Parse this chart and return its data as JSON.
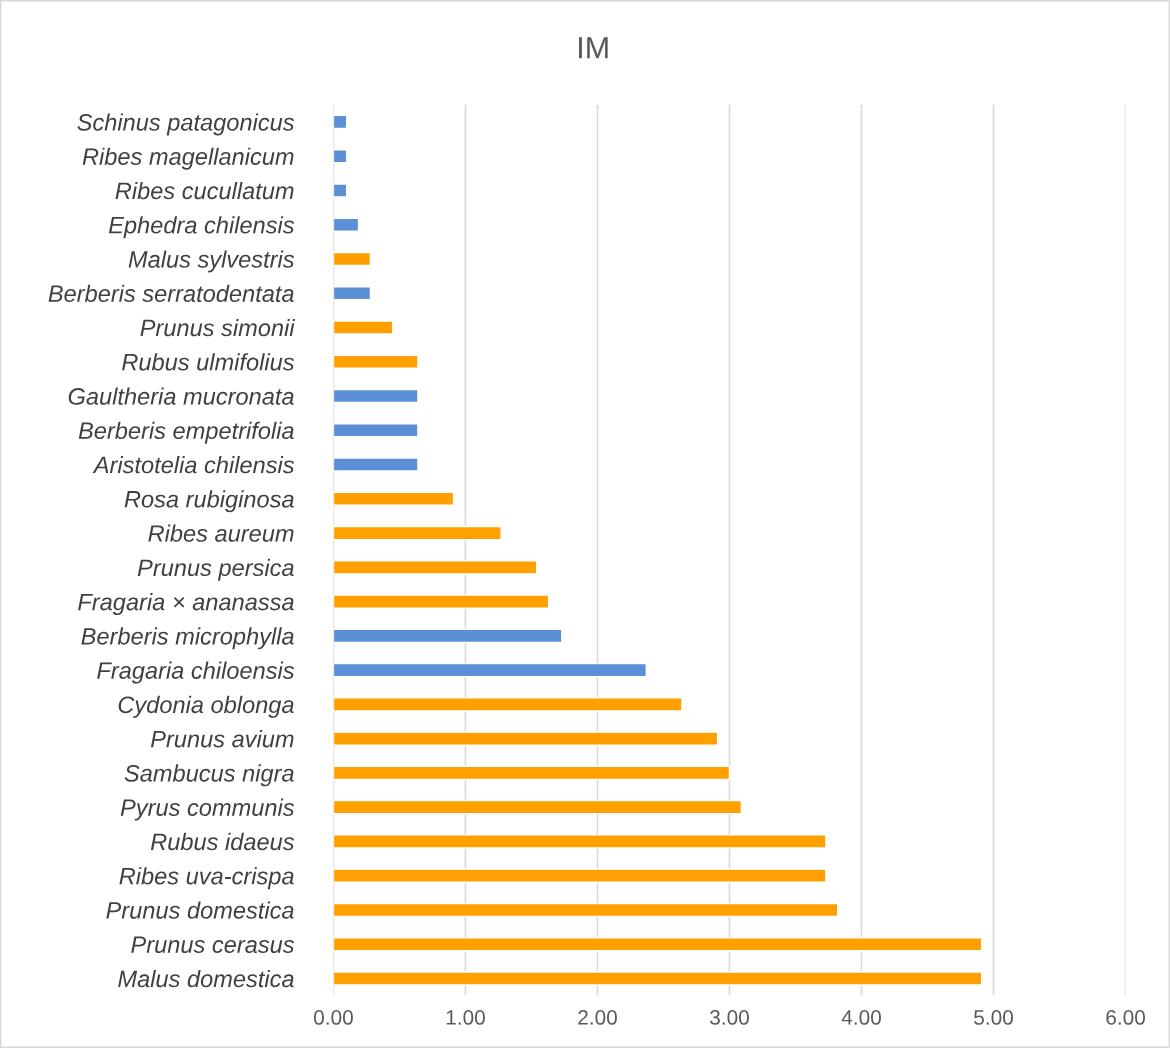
{
  "chart_data": {
    "type": "bar",
    "title": "IM",
    "orientation": "horizontal",
    "categories": [
      "Schinus patagonicus",
      "Ribes magellanicum",
      "Ribes cucullatum",
      "Ephedra chilensis",
      "Malus sylvestris",
      "Berberis serratodentata",
      "Prunus simonii",
      "Rubus ulmifolius",
      "Gaultheria mucronata",
      "Berberis empetrifolia",
      "Aristotelia chilensis",
      "Rosa rubiginosa",
      "Ribes aureum",
      "Prunus persica",
      "Fragaria × ananassa",
      "Berberis microphylla",
      "Fragaria chiloensis",
      "Cydonia oblonga",
      "Prunus avium",
      "Sambucus nigra",
      "Pyrus communis",
      "Rubus idaeus",
      "Ribes uva-crispa",
      "Prunus domestica",
      "Prunus cerasus",
      "Malus domestica"
    ],
    "values": [
      0.1,
      0.1,
      0.1,
      0.19,
      0.28,
      0.28,
      0.45,
      0.64,
      0.64,
      0.64,
      0.64,
      0.91,
      1.27,
      1.54,
      1.63,
      1.73,
      2.37,
      2.64,
      2.91,
      3.0,
      3.09,
      3.73,
      3.73,
      3.82,
      4.91,
      4.91
    ],
    "colors": [
      "#5b8fd6",
      "#5b8fd6",
      "#5b8fd6",
      "#5b8fd6",
      "#ffa000",
      "#5b8fd6",
      "#ffa000",
      "#ffa000",
      "#5b8fd6",
      "#5b8fd6",
      "#5b8fd6",
      "#ffa000",
      "#ffa000",
      "#ffa000",
      "#ffa000",
      "#5b8fd6",
      "#5b8fd6",
      "#ffa000",
      "#ffa000",
      "#ffa000",
      "#ffa000",
      "#ffa000",
      "#ffa000",
      "#ffa000",
      "#ffa000",
      "#ffa000"
    ],
    "xlim": [
      0,
      6
    ],
    "xticks": [
      {
        "value": 0,
        "label": "0.00"
      },
      {
        "value": 1,
        "label": "1.00"
      },
      {
        "value": 2,
        "label": "2.00"
      },
      {
        "value": 3,
        "label": "3.00"
      },
      {
        "value": 4,
        "label": "4.00"
      },
      {
        "value": 5,
        "label": "5.00"
      },
      {
        "value": 6,
        "label": "6.00"
      }
    ],
    "grid": "x",
    "legend": false
  }
}
